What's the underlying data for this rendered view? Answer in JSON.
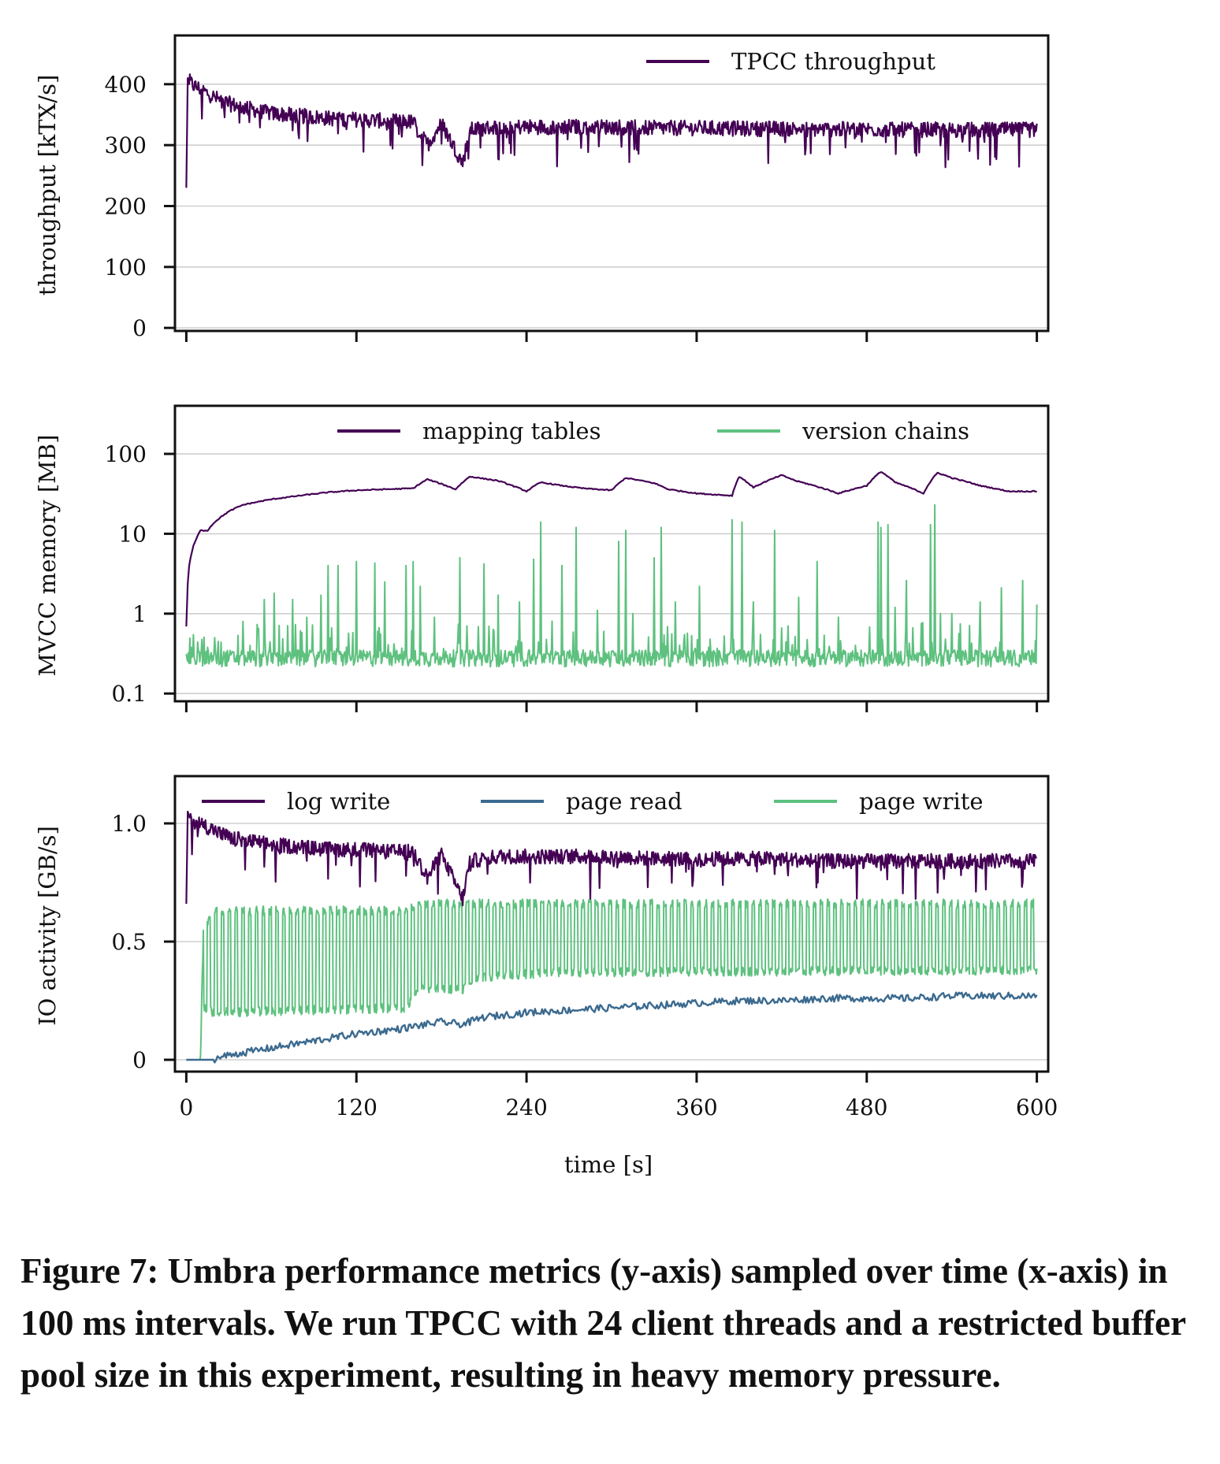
{
  "chart_data": [
    {
      "type": "line",
      "ylabel": "throughput [kTX/s]",
      "yscale": "linear",
      "ylim": [
        -5,
        480
      ],
      "yticks": [
        0,
        100,
        200,
        300,
        400
      ],
      "ytick_labels": [
        "0",
        "100",
        "200",
        "300",
        "400"
      ],
      "xlim": [
        -8,
        608
      ],
      "grid": "horizontal",
      "legend_position": "top-right",
      "series": [
        {
          "name": "TPCC throughput",
          "color": "#440154",
          "x": [
            0,
            1,
            2,
            5,
            10,
            20,
            30,
            40,
            60,
            80,
            100,
            120,
            140,
            160,
            170,
            180,
            195,
            200,
            220,
            240,
            270,
            300,
            330,
            360,
            390,
            420,
            450,
            480,
            510,
            540,
            570,
            600
          ],
          "y": [
            230,
            410,
            405,
            398,
            392,
            378,
            368,
            362,
            352,
            348,
            344,
            342,
            340,
            338,
            300,
            336,
            270,
            325,
            330,
            330,
            330,
            330,
            328,
            328,
            327,
            327,
            326,
            326,
            325,
            325,
            325,
            325
          ]
        }
      ]
    },
    {
      "type": "line",
      "ylabel": "MVCC memory [MB]",
      "yscale": "log",
      "ylim": [
        0.08,
        400
      ],
      "yticks": [
        0.1,
        1,
        10,
        100
      ],
      "ytick_labels": [
        "0.1",
        "1",
        "10",
        "100"
      ],
      "xlim": [
        -8,
        608
      ],
      "grid": "horizontal",
      "legend_position": "top-right",
      "series": [
        {
          "name": "mapping tables",
          "color": "#440154",
          "x": [
            0,
            2,
            5,
            10,
            15,
            20,
            30,
            40,
            50,
            60,
            80,
            100,
            120,
            140,
            160,
            170,
            190,
            200,
            220,
            240,
            250,
            265,
            280,
            300,
            310,
            330,
            340,
            360,
            385,
            390,
            400,
            420,
            430,
            460,
            480,
            490,
            500,
            520,
            530,
            540,
            560,
            580,
            600
          ],
          "y": [
            0.7,
            4,
            7,
            11,
            11,
            14,
            19,
            23,
            25,
            27,
            30,
            33,
            35,
            36,
            37,
            48,
            36,
            52,
            46,
            34,
            44,
            40,
            37,
            35,
            50,
            43,
            36,
            32,
            30,
            52,
            38,
            54,
            46,
            32,
            40,
            60,
            44,
            32,
            58,
            50,
            40,
            34,
            34
          ]
        },
        {
          "name": "version chains",
          "color": "#5ec17f",
          "baseline": 0.27,
          "x": [
            20,
            40,
            55,
            62,
            75,
            85,
            95,
            100,
            107,
            120,
            133,
            140,
            155,
            160,
            165,
            175,
            193,
            210,
            220,
            235,
            245,
            250,
            265,
            275,
            290,
            305,
            310,
            315,
            330,
            335,
            345,
            362,
            385,
            392,
            400,
            415,
            432,
            445,
            460,
            488,
            490,
            495,
            500,
            508,
            525,
            528,
            532,
            540,
            560,
            575,
            590,
            600
          ],
          "y": [
            0.5,
            0.8,
            1.5,
            1.8,
            1.5,
            0.9,
            1.7,
            4,
            4,
            4.5,
            4.3,
            2.5,
            4,
            4.5,
            2.2,
            0.9,
            5,
            4.2,
            1.7,
            1.4,
            4.8,
            14,
            4,
            12,
            1.1,
            8,
            11,
            1,
            5,
            12,
            1.4,
            2.2,
            15,
            14,
            1.4,
            11,
            1.6,
            4.5,
            0.9,
            14,
            12,
            13,
            1.2,
            2.6,
            13,
            23,
            1,
            1,
            1.4,
            2.1,
            2.6,
            1.3
          ]
        }
      ]
    },
    {
      "type": "line",
      "ylabel": "IO activity [GB/s]",
      "xlabel": "time [s]",
      "yscale": "linear",
      "ylim": [
        -0.05,
        1.2
      ],
      "yticks": [
        0,
        0.5,
        1.0
      ],
      "ytick_labels": [
        "0",
        "0.5",
        "1.0"
      ],
      "xlim": [
        -8,
        608
      ],
      "xticks": [
        0,
        120,
        240,
        360,
        480,
        600
      ],
      "xtick_labels": [
        "0",
        "120",
        "240",
        "360",
        "480",
        "600"
      ],
      "grid": "horizontal",
      "legend_position": "top",
      "series": [
        {
          "name": "log write",
          "color": "#440154",
          "x": [
            0,
            1,
            2,
            5,
            10,
            20,
            30,
            40,
            60,
            80,
            100,
            120,
            140,
            160,
            170,
            180,
            195,
            200,
            220,
            240,
            270,
            300,
            330,
            360,
            390,
            420,
            450,
            480,
            510,
            540,
            570,
            600
          ],
          "y": [
            0.66,
            1.05,
            1.03,
            1.01,
            1.0,
            0.97,
            0.94,
            0.93,
            0.91,
            0.9,
            0.89,
            0.89,
            0.88,
            0.88,
            0.77,
            0.87,
            0.68,
            0.84,
            0.86,
            0.86,
            0.86,
            0.86,
            0.85,
            0.85,
            0.85,
            0.85,
            0.84,
            0.84,
            0.84,
            0.84,
            0.84,
            0.84
          ]
        },
        {
          "name": "page read",
          "color": "#3b6a8f",
          "x": [
            0,
            18,
            30,
            60,
            90,
            120,
            150,
            180,
            195,
            210,
            240,
            270,
            300,
            330,
            360,
            390,
            420,
            450,
            480,
            510,
            540,
            570,
            600
          ],
          "y": [
            0,
            0,
            0.02,
            0.05,
            0.08,
            0.11,
            0.13,
            0.16,
            0.15,
            0.18,
            0.2,
            0.21,
            0.22,
            0.23,
            0.24,
            0.25,
            0.25,
            0.26,
            0.26,
            0.26,
            0.27,
            0.27,
            0.27
          ]
        },
        {
          "name": "page write",
          "color": "#5ec17f",
          "x": [
            0,
            10,
            12,
            20,
            155,
            165,
            195,
            205,
            260,
            600
          ],
          "low": [
            0,
            0,
            0.22,
            0.2,
            0.22,
            0.3,
            0.3,
            0.35,
            0.37,
            0.38
          ],
          "high": [
            0,
            0,
            0.55,
            0.63,
            0.63,
            0.66,
            0.66,
            0.66,
            0.66,
            0.66
          ]
        }
      ]
    }
  ],
  "caption": {
    "text": "Figure 7: Umbra performance metrics (y-axis) sampled over time (x-axis) in 100 ms intervals. We run TPCC with 24 client threads and a restricted buffer pool size in this experiment, resulting in heavy memory pressure."
  }
}
